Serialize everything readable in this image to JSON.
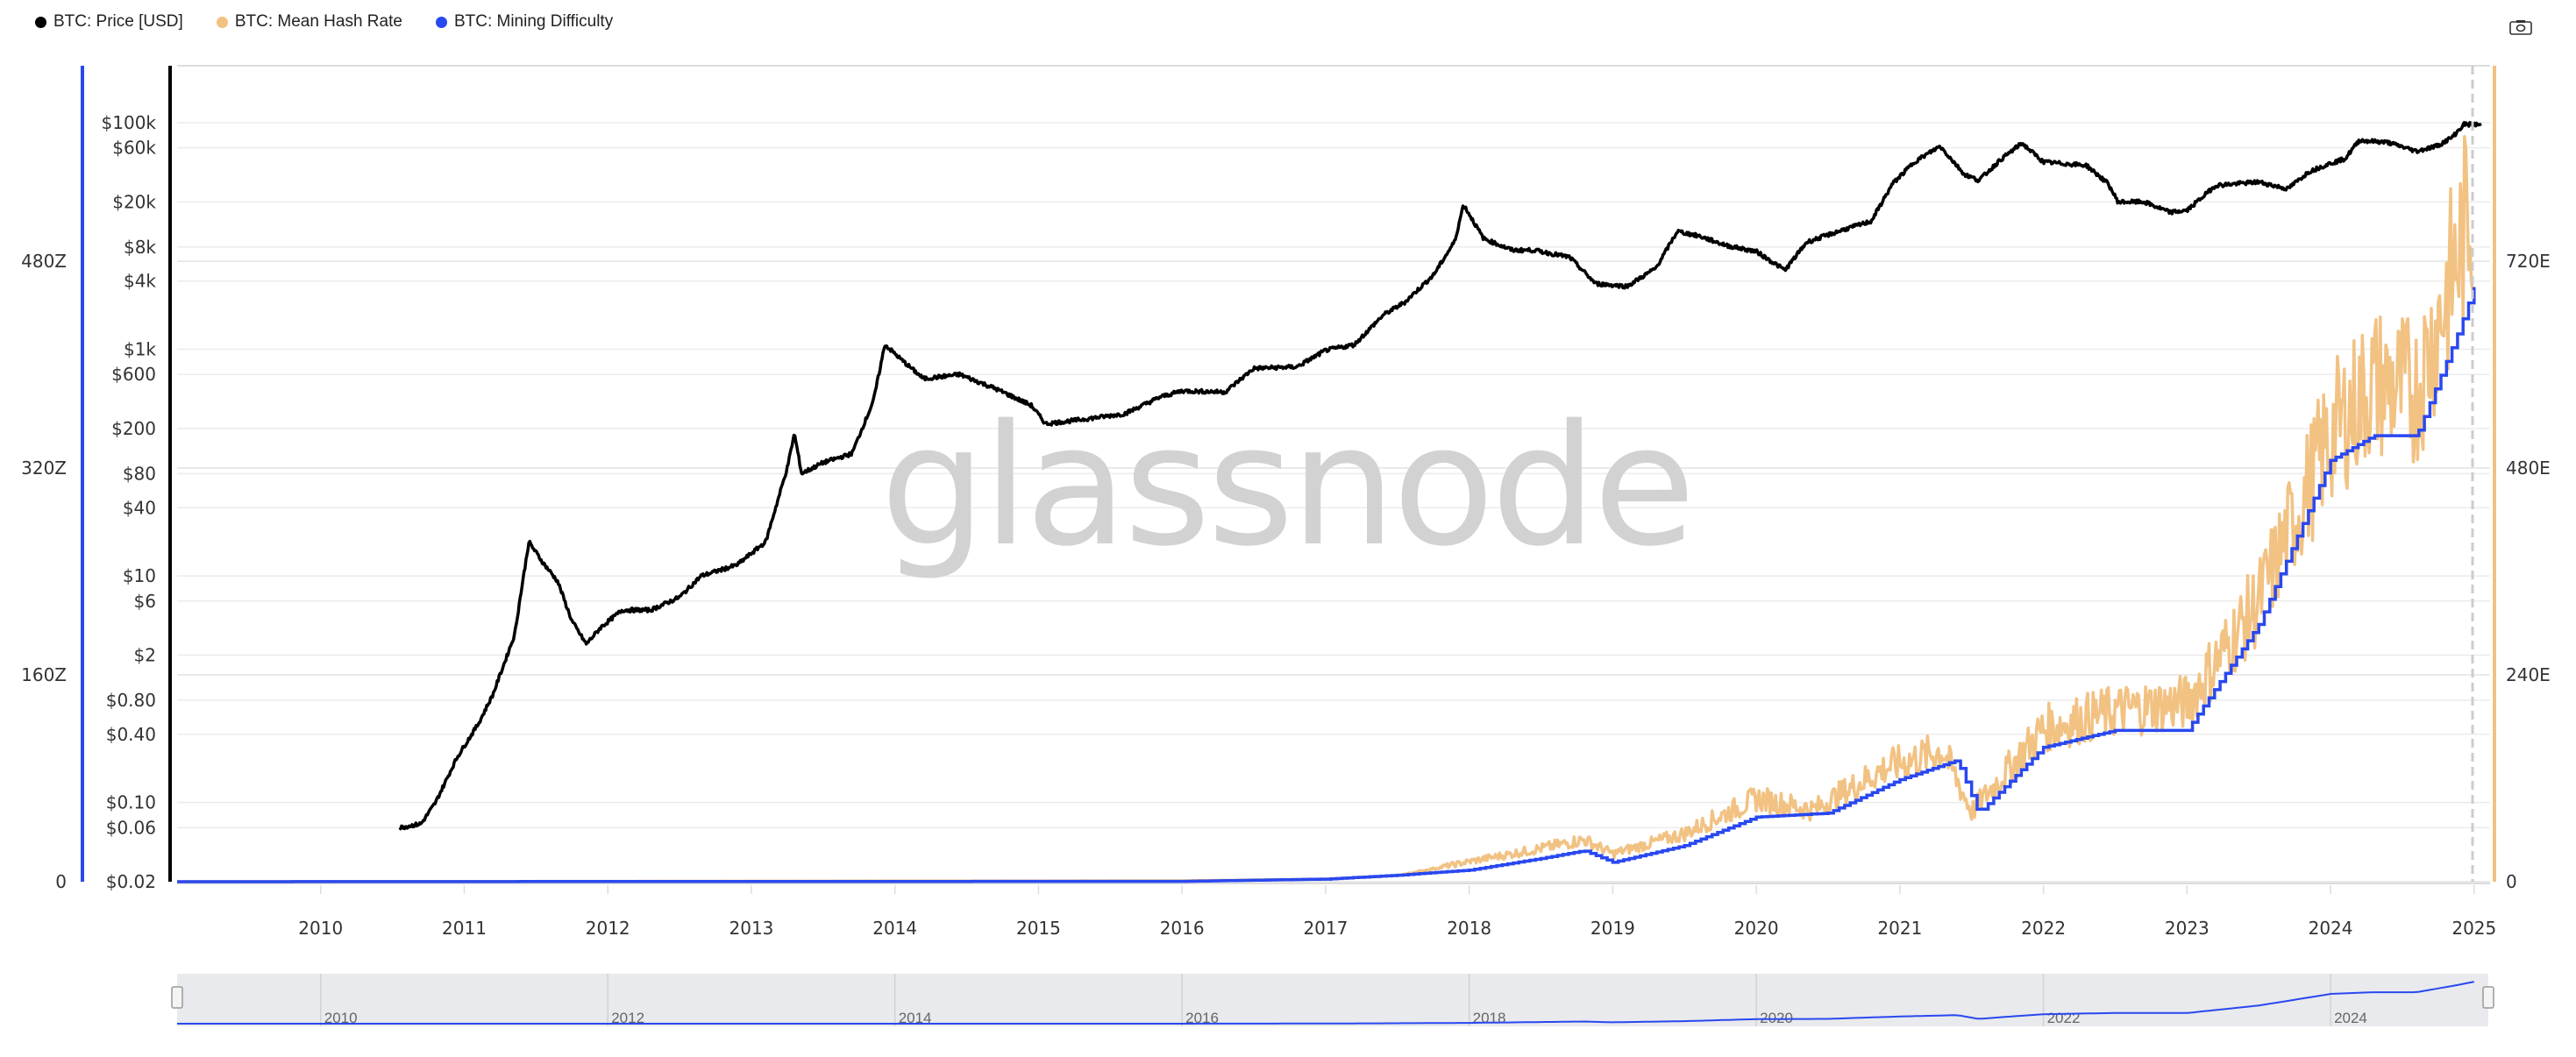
{
  "legend": [
    {
      "label": "BTC: Price [USD]",
      "color": "#000000"
    },
    {
      "label": "BTC: Mean Hash Rate",
      "color": "#f2c283"
    },
    {
      "label": "BTC: Mining Difficulty",
      "color": "#2948f0"
    }
  ],
  "watermark": "glassnode",
  "toolbar": {
    "camera_icon": "camera-icon"
  },
  "chart_data": {
    "type": "line",
    "title": "",
    "x_range": [
      2009.0,
      2025.05
    ],
    "x_ticks": [
      "2010",
      "2011",
      "2012",
      "2013",
      "2014",
      "2015",
      "2016",
      "2017",
      "2018",
      "2019",
      "2020",
      "2021",
      "2022",
      "2023",
      "2024",
      "2025"
    ],
    "navigator_ticks": [
      "2010",
      "2012",
      "2014",
      "2016",
      "2018",
      "2020",
      "2022",
      "2024"
    ],
    "price_axis": {
      "scale": "log",
      "range": [
        0.02,
        100000
      ],
      "ticks": [
        {
          "v": 100000,
          "l": "$100k"
        },
        {
          "v": 60000,
          "l": "$60k"
        },
        {
          "v": 20000,
          "l": "$20k"
        },
        {
          "v": 8000,
          "l": "$8k"
        },
        {
          "v": 4000,
          "l": "$4k"
        },
        {
          "v": 1000,
          "l": "$1k"
        },
        {
          "v": 600,
          "l": "$600"
        },
        {
          "v": 200,
          "l": "$200"
        },
        {
          "v": 80,
          "l": "$80"
        },
        {
          "v": 40,
          "l": "$40"
        },
        {
          "v": 10,
          "l": "$10"
        },
        {
          "v": 6,
          "l": "$6"
        },
        {
          "v": 2,
          "l": "$2"
        },
        {
          "v": 0.8,
          "l": "$0.80"
        },
        {
          "v": 0.4,
          "l": "$0.40"
        },
        {
          "v": 0.1,
          "l": "$0.10"
        },
        {
          "v": 0.06,
          "l": "$0.06"
        },
        {
          "v": 0.02,
          "l": "$0.02"
        }
      ]
    },
    "difficulty_axis": {
      "unit": "Z",
      "range": [
        0,
        480
      ],
      "ticks": [
        {
          "v": 0,
          "l": "0"
        },
        {
          "v": 160,
          "l": "160Z"
        },
        {
          "v": 320,
          "l": "320Z"
        },
        {
          "v": 480,
          "l": "480Z"
        }
      ]
    },
    "hashrate_axis": {
      "unit": "E",
      "range": [
        0,
        720
      ],
      "ticks": [
        {
          "v": 0,
          "l": "0"
        },
        {
          "v": 240,
          "l": "240E"
        },
        {
          "v": 480,
          "l": "480E"
        },
        {
          "v": 720,
          "l": "720E"
        }
      ]
    },
    "series": [
      {
        "name": "BTC: Price [USD]",
        "axis": "price",
        "points": [
          [
            2010.55,
            0.06
          ],
          [
            2010.7,
            0.065
          ],
          [
            2010.8,
            0.1
          ],
          [
            2010.95,
            0.25
          ],
          [
            2011.1,
            0.5
          ],
          [
            2011.2,
            0.9
          ],
          [
            2011.35,
            3
          ],
          [
            2011.45,
            20
          ],
          [
            2011.55,
            13
          ],
          [
            2011.65,
            9
          ],
          [
            2011.75,
            4
          ],
          [
            2011.85,
            2.5
          ],
          [
            2011.95,
            3.5
          ],
          [
            2012.1,
            5
          ],
          [
            2012.3,
            5
          ],
          [
            2012.5,
            6.5
          ],
          [
            2012.65,
            10
          ],
          [
            2012.9,
            12.5
          ],
          [
            2013.1,
            20
          ],
          [
            2013.25,
            90
          ],
          [
            2013.3,
            180
          ],
          [
            2013.35,
            80
          ],
          [
            2013.5,
            100
          ],
          [
            2013.7,
            120
          ],
          [
            2013.85,
            350
          ],
          [
            2013.93,
            1100
          ],
          [
            2014.05,
            800
          ],
          [
            2014.2,
            550
          ],
          [
            2014.45,
            600
          ],
          [
            2014.7,
            450
          ],
          [
            2014.95,
            320
          ],
          [
            2015.05,
            220
          ],
          [
            2015.3,
            240
          ],
          [
            2015.6,
            270
          ],
          [
            2015.85,
            380
          ],
          [
            2016.0,
            430
          ],
          [
            2016.3,
            420
          ],
          [
            2016.5,
            680
          ],
          [
            2016.8,
            700
          ],
          [
            2017.0,
            980
          ],
          [
            2017.2,
            1100
          ],
          [
            2017.4,
            2000
          ],
          [
            2017.55,
            2600
          ],
          [
            2017.75,
            4500
          ],
          [
            2017.9,
            9000
          ],
          [
            2017.96,
            19000
          ],
          [
            2018.1,
            9500
          ],
          [
            2018.3,
            7500
          ],
          [
            2018.45,
            7500
          ],
          [
            2018.7,
            6500
          ],
          [
            2018.88,
            3800
          ],
          [
            2019.1,
            3600
          ],
          [
            2019.3,
            5200
          ],
          [
            2019.45,
            11000
          ],
          [
            2019.6,
            10000
          ],
          [
            2019.8,
            8200
          ],
          [
            2020.0,
            7300
          ],
          [
            2020.2,
            5000
          ],
          [
            2020.35,
            8800
          ],
          [
            2020.6,
            11300
          ],
          [
            2020.8,
            13500
          ],
          [
            2020.95,
            29000
          ],
          [
            2021.1,
            45000
          ],
          [
            2021.28,
            62000
          ],
          [
            2021.45,
            35000
          ],
          [
            2021.55,
            31000
          ],
          [
            2021.7,
            47000
          ],
          [
            2021.85,
            66000
          ],
          [
            2022.0,
            45000
          ],
          [
            2022.3,
            42000
          ],
          [
            2022.45,
            29000
          ],
          [
            2022.52,
            20000
          ],
          [
            2022.7,
            20000
          ],
          [
            2022.88,
            16200
          ],
          [
            2023.0,
            16800
          ],
          [
            2023.2,
            28000
          ],
          [
            2023.5,
            30000
          ],
          [
            2023.7,
            26000
          ],
          [
            2023.85,
            37000
          ],
          [
            2023.98,
            43000
          ],
          [
            2024.1,
            48000
          ],
          [
            2024.2,
            70000
          ],
          [
            2024.4,
            67000
          ],
          [
            2024.6,
            56000
          ],
          [
            2024.75,
            63000
          ],
          [
            2024.85,
            75000
          ],
          [
            2024.93,
            97000
          ],
          [
            2025.05,
            96000
          ]
        ]
      },
      {
        "name": "BTC: Mean Hash Rate",
        "axis": "hashrate",
        "points": [
          [
            2009.0,
            0
          ],
          [
            2016.0,
            1
          ],
          [
            2017.0,
            3
          ],
          [
            2017.5,
            7
          ],
          [
            2018.0,
            23
          ],
          [
            2018.5,
            38
          ],
          [
            2018.8,
            48
          ],
          [
            2019.0,
            32
          ],
          [
            2019.5,
            55
          ],
          [
            2020.0,
            95
          ],
          [
            2020.4,
            82
          ],
          [
            2020.9,
            130
          ],
          [
            2021.3,
            150
          ],
          [
            2021.5,
            80
          ],
          [
            2022.0,
            175
          ],
          [
            2022.5,
            195
          ],
          [
            2023.0,
            205
          ],
          [
            2023.5,
            320
          ],
          [
            2024.0,
            510
          ],
          [
            2024.3,
            570
          ],
          [
            2024.6,
            560
          ],
          [
            2024.9,
            720
          ],
          [
            2025.0,
            790
          ]
        ]
      },
      {
        "name": "BTC: Mining Difficulty",
        "axis": "difficulty",
        "points": [
          [
            2009.0,
            0
          ],
          [
            2016.0,
            0.3
          ],
          [
            2017.0,
            2
          ],
          [
            2017.5,
            5
          ],
          [
            2018.0,
            9
          ],
          [
            2018.5,
            18
          ],
          [
            2018.8,
            24
          ],
          [
            2019.0,
            15
          ],
          [
            2019.5,
            28
          ],
          [
            2020.0,
            50
          ],
          [
            2020.5,
            53
          ],
          [
            2021.0,
            79
          ],
          [
            2021.4,
            94
          ],
          [
            2021.55,
            53
          ],
          [
            2022.0,
            104
          ],
          [
            2022.5,
            117
          ],
          [
            2023.0,
            117
          ],
          [
            2023.5,
            199
          ],
          [
            2024.0,
            326
          ],
          [
            2024.3,
            345
          ],
          [
            2024.6,
            345
          ],
          [
            2024.9,
            428
          ],
          [
            2025.0,
            460
          ]
        ]
      }
    ]
  }
}
